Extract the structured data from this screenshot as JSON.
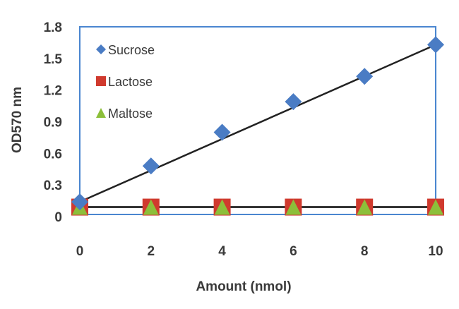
{
  "chart_data": {
    "type": "scatter",
    "title": "",
    "xlabel": "Amount  (nmol)",
    "ylabel": "OD570 nm",
    "x": [
      0,
      2,
      4,
      6,
      8,
      10
    ],
    "xticks": [
      "0",
      "2",
      "4",
      "6",
      "8",
      "10"
    ],
    "yticks": [
      "0",
      "0.3",
      "0.6",
      "0.9",
      "1.2",
      "1.5",
      "1.8"
    ],
    "xlim": [
      0,
      10
    ],
    "ylim": [
      0,
      1.8
    ],
    "grid": false,
    "legend_position": "top-left",
    "series": [
      {
        "name": "Sucrose",
        "marker": "diamond",
        "color": "#4a7cc4",
        "values": [
          0.14,
          0.48,
          0.8,
          1.09,
          1.33,
          1.63
        ],
        "trendline": [
          0.14,
          1.63
        ]
      },
      {
        "name": "Lactose",
        "marker": "square",
        "color": "#d03a2e",
        "values": [
          0.09,
          0.09,
          0.09,
          0.09,
          0.09,
          0.09
        ],
        "trendline": [
          0.09,
          0.09
        ]
      },
      {
        "name": "Maltose",
        "marker": "triangle",
        "color": "#8cbf3a",
        "values": [
          0.09,
          0.09,
          0.09,
          0.09,
          0.09,
          0.09
        ],
        "trendline": [
          0.09,
          0.09
        ]
      }
    ],
    "plot_border_color": "#4a86d0"
  }
}
